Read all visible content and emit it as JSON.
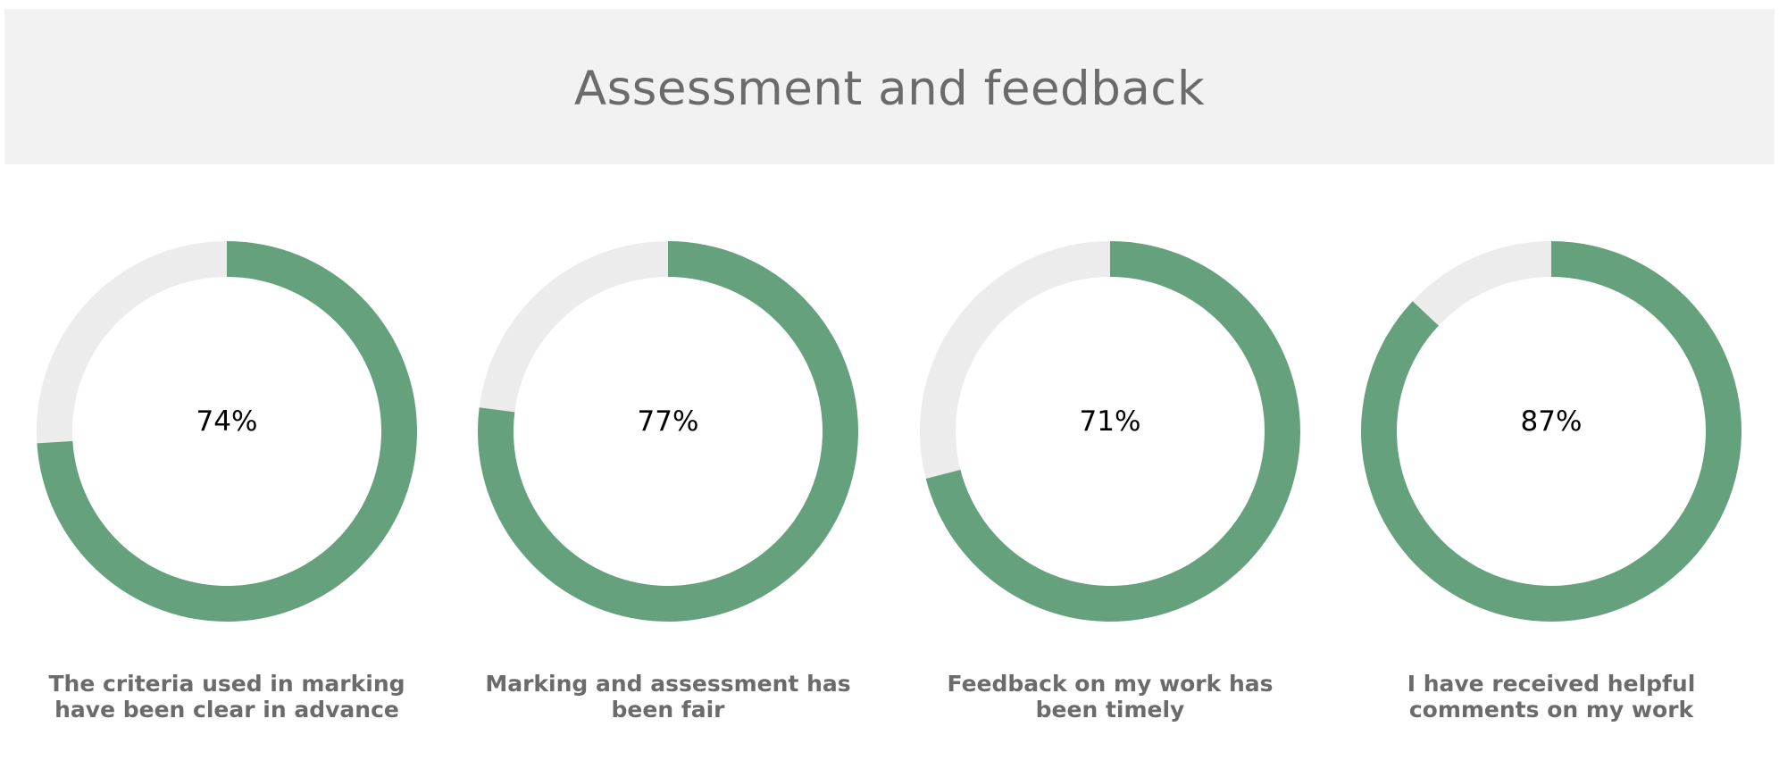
{
  "header": {
    "title": "Assessment and feedback"
  },
  "colors": {
    "filled": "#66a17e",
    "track": "#ececec",
    "header_bg": "#f2f2f2",
    "text_muted": "#6b6b6b"
  },
  "chart_data": [
    {
      "type": "pie",
      "variant": "donut",
      "value": 74,
      "value_label": "74%",
      "caption": "The criteria used in marking have been clear in advance"
    },
    {
      "type": "pie",
      "variant": "donut",
      "value": 77,
      "value_label": "77%",
      "caption": "Marking and assessment has been fair"
    },
    {
      "type": "pie",
      "variant": "donut",
      "value": 71,
      "value_label": "71%",
      "caption": "Feedback on my work has been timely"
    },
    {
      "type": "pie",
      "variant": "donut",
      "value": 87,
      "value_label": "87%",
      "caption": "I have received helpful comments on my work"
    }
  ]
}
